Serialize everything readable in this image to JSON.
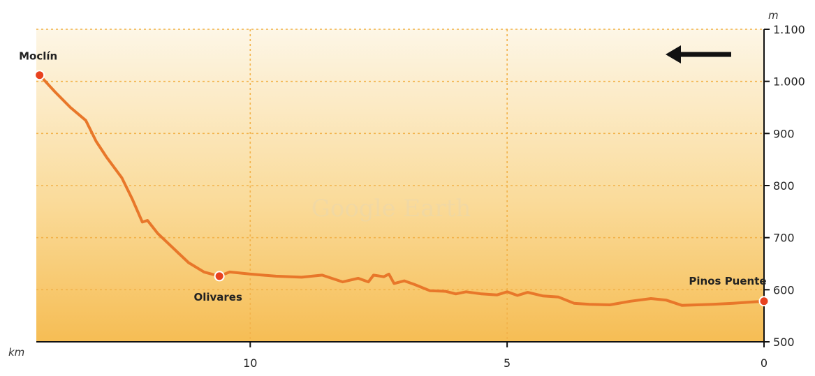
{
  "chart_data": {
    "type": "line",
    "title": "",
    "xlabel": "km",
    "ylabel": "m",
    "x_reversed": true,
    "xlim": [
      14,
      0
    ],
    "ylim": [
      500,
      1100
    ],
    "xticks": [
      10,
      5,
      0
    ],
    "xtick_labels": [
      "10",
      "5",
      "0"
    ],
    "yticks": [
      500,
      600,
      700,
      800,
      900,
      1000,
      1100
    ],
    "ytick_labels": [
      "500",
      "600",
      "700",
      "800",
      "900",
      "1.000",
      "1.100"
    ],
    "grid": true,
    "series": [
      {
        "x": [
          14.1,
          13.8,
          13.5,
          13.2,
          13.0,
          12.8,
          12.5,
          12.3,
          12.1,
          12.0,
          11.8,
          11.5,
          11.2,
          10.9,
          10.6,
          10.4,
          10.0,
          9.5,
          9.0,
          8.6,
          8.2,
          7.9,
          7.7,
          7.6,
          7.4,
          7.3,
          7.2,
          7.0,
          6.8,
          6.5,
          6.2,
          6.0,
          5.8,
          5.5,
          5.2,
          5.0,
          4.8,
          4.6,
          4.3,
          4.0,
          3.7,
          3.4,
          3.0,
          2.6,
          2.2,
          1.9,
          1.6,
          1.3,
          1.0,
          0.6,
          0.3,
          0.0
        ],
        "y": [
          1012,
          980,
          950,
          925,
          885,
          855,
          815,
          775,
          730,
          733,
          708,
          680,
          652,
          634,
          626,
          634,
          630,
          626,
          624,
          628,
          615,
          622,
          615,
          628,
          625,
          630,
          612,
          617,
          610,
          598,
          597,
          592,
          596,
          592,
          590,
          596,
          589,
          595,
          588,
          586,
          574,
          572,
          571,
          578,
          583,
          580,
          570,
          571,
          572,
          574,
          576,
          578
        ]
      }
    ],
    "annotations": [
      {
        "label": "Moclín",
        "x": 14.1,
        "y": 1012
      },
      {
        "label": "Olivares",
        "x": 10.6,
        "y": 626
      },
      {
        "label": "Pinos Puente",
        "x": 0.0,
        "y": 578
      }
    ],
    "arrow_direction": "left",
    "colors": {
      "line": "#e8772a",
      "marker": "#e8421f",
      "grid": "#f2b24a",
      "background_top": "#fdf6e6",
      "background_bottom": "#f6bd54"
    }
  }
}
